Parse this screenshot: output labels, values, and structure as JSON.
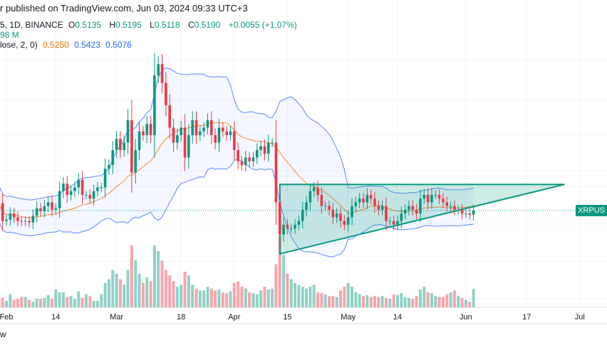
{
  "header": {
    "published": "r published on TradingView.com, Jun 03, 2024 09:33 UTC+3"
  },
  "legend": {
    "symbol": "5, 1D, BINANCE",
    "open_label": "O",
    "open": "0.5135",
    "high_label": "H",
    "high": "0.5195",
    "low_label": "L",
    "low": "0.5118",
    "close_label": "C",
    "close": "0.5190",
    "change": "+0.0055 (+1.07%)",
    "volume": "98 M",
    "bb_params": "lose, 2, 0)",
    "bb_basis": "0.5250",
    "bb_upper": "0.5423",
    "bb_lower": "0.5076"
  },
  "price_label": "XRPUS",
  "footer_text": "w",
  "colors": {
    "up": "#089981",
    "down": "#f23645",
    "bb_band": "#2962ff",
    "bb_basis": "#ff6d00",
    "pattern_fill": "#089981"
  },
  "chart_data": {
    "type": "candlestick",
    "start_date": "2024-01-30",
    "interval": "1D",
    "x_ticks": [
      "Feb",
      "14",
      "Mar",
      "18",
      "Apr",
      "15",
      "May",
      "14",
      "Jun",
      "17",
      "Jul"
    ],
    "x_tick_dates": [
      "2024-02-01",
      "2024-02-14",
      "2024-03-01",
      "2024-03-18",
      "2024-04-01",
      "2024-04-15",
      "2024-05-01",
      "2024-05-14",
      "2024-06-01",
      "2024-06-17",
      "2024-07-01"
    ],
    "close": [
      0.529,
      0.505,
      0.507,
      0.515,
      0.51,
      0.505,
      0.504,
      0.505,
      0.503,
      0.512,
      0.522,
      0.518,
      0.525,
      0.53,
      0.52,
      0.522,
      0.545,
      0.555,
      0.54,
      0.545,
      0.55,
      0.56,
      0.54,
      0.54,
      0.535,
      0.545,
      0.55,
      0.55,
      0.575,
      0.58,
      0.6,
      0.615,
      0.6,
      0.61,
      0.64,
      0.57,
      0.6,
      0.625,
      0.62,
      0.635,
      0.62,
      0.7,
      0.715,
      0.69,
      0.66,
      0.63,
      0.61,
      0.62,
      0.63,
      0.59,
      0.62,
      0.64,
      0.62,
      0.625,
      0.63,
      0.64,
      0.62,
      0.61,
      0.63,
      0.625,
      0.62,
      0.625,
      0.6,
      0.585,
      0.58,
      0.59,
      0.585,
      0.59,
      0.6,
      0.605,
      0.595,
      0.61,
      0.61,
      0.53,
      0.487,
      0.5,
      0.495,
      0.495,
      0.5,
      0.505,
      0.52,
      0.53,
      0.545,
      0.55,
      0.54,
      0.525,
      0.525,
      0.52,
      0.51,
      0.515,
      0.505,
      0.5,
      0.51,
      0.525,
      0.53,
      0.535,
      0.53,
      0.54,
      0.535,
      0.525,
      0.52,
      0.525,
      0.505,
      0.505,
      0.5,
      0.505,
      0.515,
      0.52,
      0.525,
      0.52,
      0.515,
      0.535,
      0.54,
      0.53,
      0.54,
      0.54,
      0.535,
      0.53,
      0.525,
      0.525,
      0.52,
      0.52,
      0.515,
      0.515,
      0.5135,
      0.519
    ],
    "volume_millions": [
      60,
      50,
      35,
      70,
      40,
      45,
      55,
      55,
      40,
      30,
      45,
      45,
      50,
      65,
      45,
      95,
      80,
      80,
      55,
      60,
      45,
      85,
      50,
      70,
      60,
      35,
      35,
      70,
      130,
      150,
      200,
      180,
      150,
      120,
      200,
      330,
      250,
      180,
      130,
      160,
      140,
      330,
      300,
      250,
      200,
      170,
      140,
      110,
      120,
      190,
      170,
      120,
      100,
      90,
      90,
      110,
      100,
      90,
      95,
      80,
      75,
      85,
      130,
      140,
      110,
      100,
      80,
      75,
      70,
      90,
      110,
      95,
      100,
      230,
      380,
      280,
      180,
      150,
      130,
      120,
      110,
      100,
      110,
      120,
      80,
      75,
      70,
      60,
      60,
      55,
      90,
      110,
      130,
      110,
      80,
      70,
      60,
      65,
      55,
      60,
      55,
      60,
      50,
      45,
      70,
      65,
      75,
      55,
      50,
      45,
      60,
      95,
      110,
      80,
      75,
      60,
      55,
      55,
      70,
      80,
      90,
      60,
      50,
      40,
      30,
      98
    ],
    "indicator": {
      "name": "Bollinger Bands",
      "length": 20,
      "mult": 2
    },
    "last_price": 0.519,
    "pattern": {
      "type": "ascending triangle",
      "points": [
        {
          "date": "2024-04-13",
          "price": 0.461
        },
        {
          "date": "2024-04-13",
          "price": 0.554
        },
        {
          "date": "2024-06-27",
          "price": 0.554
        }
      ]
    },
    "grid": true
  }
}
